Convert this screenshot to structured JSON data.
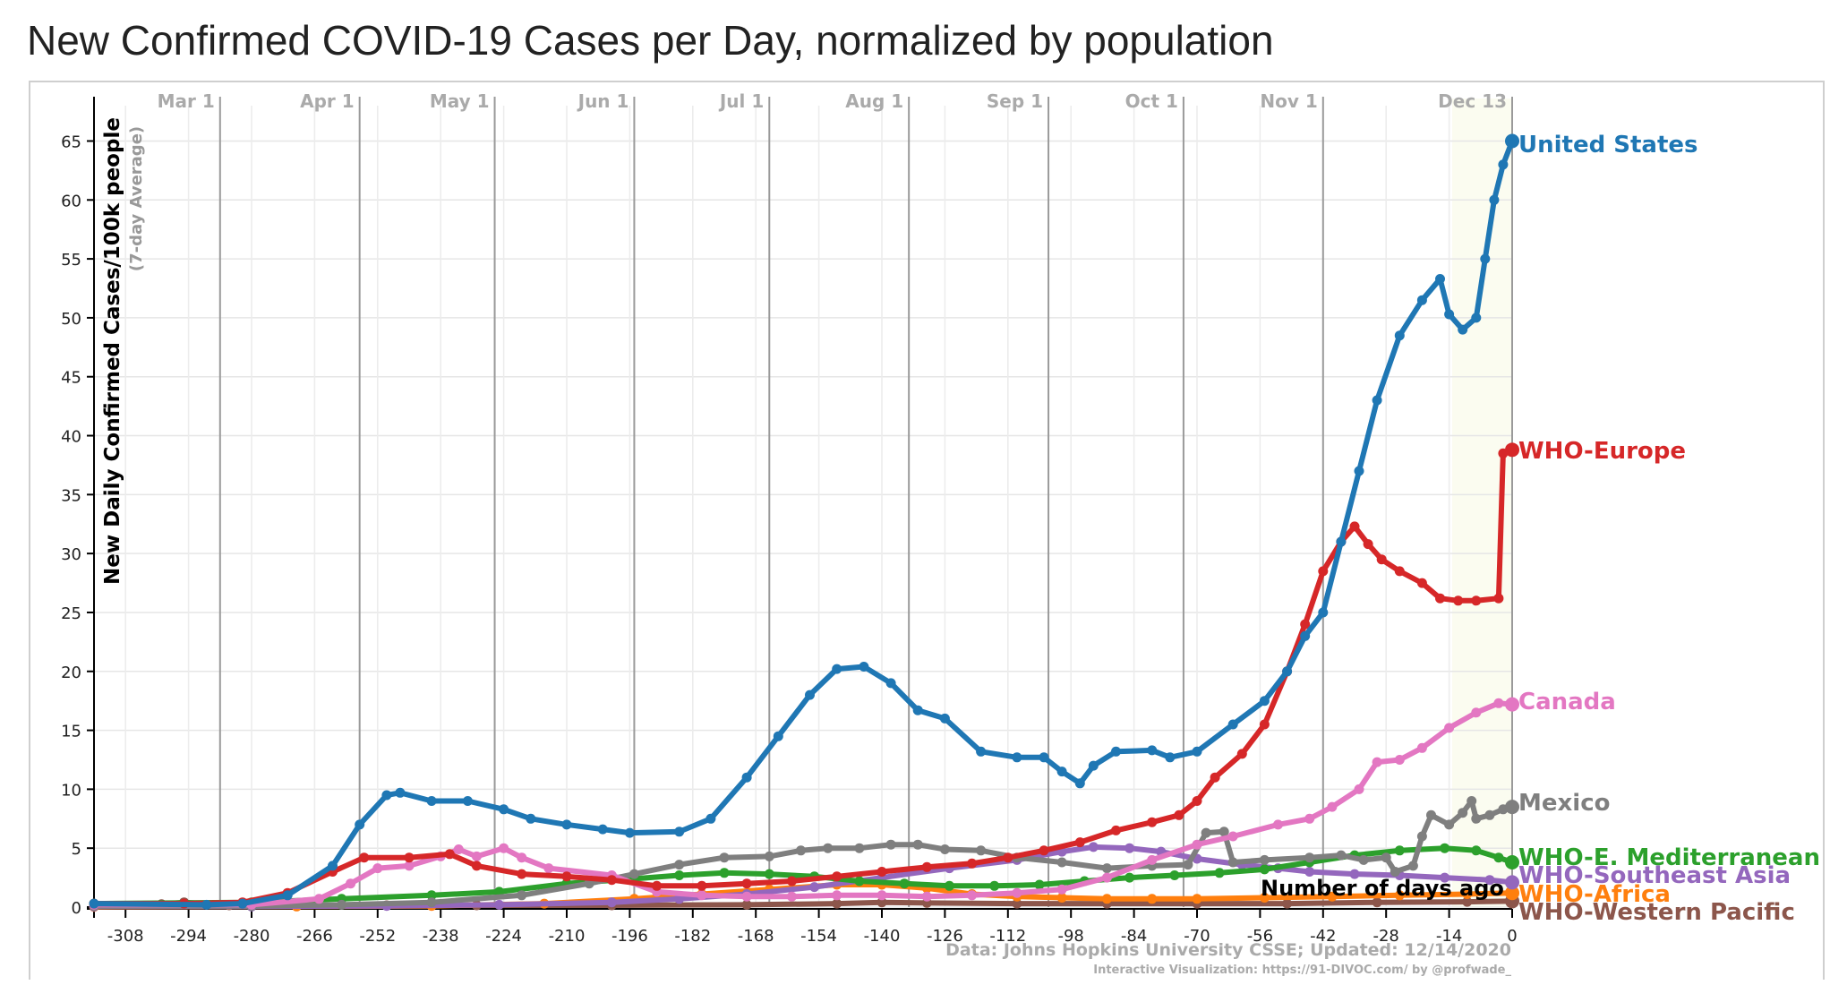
{
  "title": "New Confirmed COVID-19 Cases per Day, normalized by population",
  "chart_data": {
    "type": "line",
    "title": "New Confirmed COVID-19 Cases per Day, normalized by population",
    "ylabel": "New Daily Confirmed Cases/100k people",
    "ylabel_sub": "(7-day Average)",
    "xlabel": "Number of days ago",
    "xlim": [
      -315,
      0
    ],
    "ylim": [
      0,
      68
    ],
    "x_ticks": [
      -308,
      -294,
      -280,
      -266,
      -252,
      -238,
      -224,
      -210,
      -196,
      -182,
      -168,
      -154,
      -140,
      -126,
      -112,
      -98,
      -84,
      -70,
      -56,
      -42,
      -28,
      -14,
      0
    ],
    "y_ticks": [
      0,
      5,
      10,
      15,
      20,
      25,
      30,
      35,
      40,
      45,
      50,
      55,
      60,
      65
    ],
    "grid": true,
    "date_markers": [
      {
        "label": "Mar 1",
        "x": -287
      },
      {
        "label": "Apr 1",
        "x": -256
      },
      {
        "label": "May 1",
        "x": -226
      },
      {
        "label": "Jun 1",
        "x": -195
      },
      {
        "label": "Jul 1",
        "x": -165
      },
      {
        "label": "Aug 1",
        "x": -134
      },
      {
        "label": "Sep 1",
        "x": -103
      },
      {
        "label": "Oct 1",
        "x": -73
      },
      {
        "label": "Nov 1",
        "x": -42
      },
      {
        "label": "Dec 13",
        "x": 0
      }
    ],
    "series": [
      {
        "name": "United States",
        "color": "#1f77b4",
        "points": [
          [
            -315,
            0.3
          ],
          [
            -290,
            0.2
          ],
          [
            -282,
            0.3
          ],
          [
            -272,
            1
          ],
          [
            -262,
            3.5
          ],
          [
            -256,
            7
          ],
          [
            -250,
            9.5
          ],
          [
            -247,
            9.7
          ],
          [
            -240,
            9
          ],
          [
            -232,
            9
          ],
          [
            -224,
            8.3
          ],
          [
            -218,
            7.5
          ],
          [
            -210,
            7
          ],
          [
            -202,
            6.6
          ],
          [
            -196,
            6.3
          ],
          [
            -185,
            6.4
          ],
          [
            -178,
            7.5
          ],
          [
            -170,
            11
          ],
          [
            -163,
            14.5
          ],
          [
            -156,
            18
          ],
          [
            -150,
            20.2
          ],
          [
            -144,
            20.4
          ],
          [
            -138,
            19
          ],
          [
            -132,
            16.7
          ],
          [
            -126,
            16
          ],
          [
            -118,
            13.2
          ],
          [
            -110,
            12.7
          ],
          [
            -104,
            12.7
          ],
          [
            -100,
            11.5
          ],
          [
            -96,
            10.5
          ],
          [
            -93,
            12
          ],
          [
            -88,
            13.2
          ],
          [
            -80,
            13.3
          ],
          [
            -76,
            12.7
          ],
          [
            -70,
            13.2
          ],
          [
            -62,
            15.5
          ],
          [
            -55,
            17.5
          ],
          [
            -50,
            20
          ],
          [
            -46,
            23
          ],
          [
            -42,
            25
          ],
          [
            -38,
            31
          ],
          [
            -34,
            37
          ],
          [
            -30,
            43
          ],
          [
            -25,
            48.5
          ],
          [
            -20,
            51.5
          ],
          [
            -16,
            53.3
          ],
          [
            -14,
            50.3
          ],
          [
            -11,
            49
          ],
          [
            -8,
            50
          ],
          [
            -6,
            55
          ],
          [
            -4,
            60
          ],
          [
            -2,
            63
          ],
          [
            0,
            65
          ]
        ]
      },
      {
        "name": "WHO-Europe",
        "color": "#d62728",
        "points": [
          [
            -315,
            0.3
          ],
          [
            -295,
            0.3
          ],
          [
            -282,
            0.4
          ],
          [
            -272,
            1.2
          ],
          [
            -262,
            3
          ],
          [
            -255,
            4.2
          ],
          [
            -245,
            4.2
          ],
          [
            -236,
            4.5
          ],
          [
            -230,
            3.5
          ],
          [
            -220,
            2.8
          ],
          [
            -210,
            2.6
          ],
          [
            -200,
            2.3
          ],
          [
            -190,
            1.8
          ],
          [
            -180,
            1.8
          ],
          [
            -170,
            2
          ],
          [
            -160,
            2.2
          ],
          [
            -150,
            2.6
          ],
          [
            -140,
            3
          ],
          [
            -130,
            3.4
          ],
          [
            -120,
            3.7
          ],
          [
            -112,
            4.2
          ],
          [
            -104,
            4.8
          ],
          [
            -96,
            5.5
          ],
          [
            -88,
            6.5
          ],
          [
            -80,
            7.2
          ],
          [
            -74,
            7.8
          ],
          [
            -70,
            9
          ],
          [
            -66,
            11
          ],
          [
            -60,
            13
          ],
          [
            -55,
            15.5
          ],
          [
            -50,
            20
          ],
          [
            -46,
            24
          ],
          [
            -42,
            28.5
          ],
          [
            -38,
            31
          ],
          [
            -35,
            32.3
          ],
          [
            -32,
            30.8
          ],
          [
            -29,
            29.5
          ],
          [
            -25,
            28.5
          ],
          [
            -20,
            27.5
          ],
          [
            -16,
            26.2
          ],
          [
            -12,
            26
          ],
          [
            -8,
            26
          ],
          [
            -3,
            26.2
          ],
          [
            -2,
            38.5
          ],
          [
            0,
            38.8
          ]
        ]
      },
      {
        "name": "Canada",
        "color": "#e377c2",
        "points": [
          [
            -315,
            0.2
          ],
          [
            -280,
            0.2
          ],
          [
            -265,
            0.7
          ],
          [
            -258,
            2
          ],
          [
            -252,
            3.3
          ],
          [
            -245,
            3.5
          ],
          [
            -238,
            4.3
          ],
          [
            -234,
            4.9
          ],
          [
            -230,
            4.3
          ],
          [
            -224,
            5
          ],
          [
            -220,
            4.2
          ],
          [
            -214,
            3.3
          ],
          [
            -200,
            2.7
          ],
          [
            -190,
            1.3
          ],
          [
            -180,
            1
          ],
          [
            -170,
            0.9
          ],
          [
            -160,
            0.9
          ],
          [
            -150,
            1
          ],
          [
            -140,
            1
          ],
          [
            -130,
            0.9
          ],
          [
            -120,
            1
          ],
          [
            -110,
            1.2
          ],
          [
            -100,
            1.5
          ],
          [
            -90,
            2.5
          ],
          [
            -80,
            4
          ],
          [
            -70,
            5.3
          ],
          [
            -62,
            6
          ],
          [
            -52,
            7
          ],
          [
            -45,
            7.5
          ],
          [
            -40,
            8.5
          ],
          [
            -34,
            10
          ],
          [
            -30,
            12.3
          ],
          [
            -25,
            12.5
          ],
          [
            -20,
            13.5
          ],
          [
            -14,
            15.2
          ],
          [
            -8,
            16.5
          ],
          [
            -3,
            17.3
          ],
          [
            0,
            17.2
          ]
        ]
      },
      {
        "name": "Mexico",
        "color": "#7f7f7f",
        "points": [
          [
            -315,
            0.1
          ],
          [
            -280,
            0.1
          ],
          [
            -260,
            0.2
          ],
          [
            -240,
            0.4
          ],
          [
            -220,
            1
          ],
          [
            -205,
            2
          ],
          [
            -195,
            2.8
          ],
          [
            -185,
            3.6
          ],
          [
            -175,
            4.2
          ],
          [
            -165,
            4.3
          ],
          [
            -158,
            4.8
          ],
          [
            -152,
            5
          ],
          [
            -145,
            5
          ],
          [
            -138,
            5.3
          ],
          [
            -132,
            5.3
          ],
          [
            -126,
            4.9
          ],
          [
            -118,
            4.8
          ],
          [
            -110,
            4.2
          ],
          [
            -100,
            3.8
          ],
          [
            -90,
            3.3
          ],
          [
            -80,
            3.5
          ],
          [
            -72,
            3.6
          ],
          [
            -68,
            6.3
          ],
          [
            -64,
            6.4
          ],
          [
            -62,
            3.8
          ],
          [
            -55,
            4
          ],
          [
            -45,
            4.2
          ],
          [
            -38,
            4.4
          ],
          [
            -33,
            4
          ],
          [
            -28,
            4.2
          ],
          [
            -26,
            3
          ],
          [
            -22,
            3.5
          ],
          [
            -20,
            6
          ],
          [
            -18,
            7.8
          ],
          [
            -14,
            7
          ],
          [
            -11,
            8
          ],
          [
            -9,
            9
          ],
          [
            -8,
            7.5
          ],
          [
            -5,
            7.8
          ],
          [
            -2,
            8.3
          ],
          [
            0,
            8.5
          ]
        ]
      },
      {
        "name": "WHO-E. Mediterranean",
        "color": "#2ca02c",
        "points": [
          [
            -315,
            0.3
          ],
          [
            -280,
            0.4
          ],
          [
            -260,
            0.7
          ],
          [
            -240,
            1
          ],
          [
            -225,
            1.3
          ],
          [
            -210,
            2
          ],
          [
            -195,
            2.4
          ],
          [
            -185,
            2.7
          ],
          [
            -175,
            2.9
          ],
          [
            -165,
            2.8
          ],
          [
            -155,
            2.6
          ],
          [
            -145,
            2.2
          ],
          [
            -135,
            2
          ],
          [
            -125,
            1.8
          ],
          [
            -115,
            1.8
          ],
          [
            -105,
            1.9
          ],
          [
            -95,
            2.2
          ],
          [
            -85,
            2.5
          ],
          [
            -75,
            2.7
          ],
          [
            -65,
            2.9
          ],
          [
            -55,
            3.2
          ],
          [
            -45,
            3.8
          ],
          [
            -35,
            4.4
          ],
          [
            -25,
            4.8
          ],
          [
            -15,
            5
          ],
          [
            -8,
            4.8
          ],
          [
            -3,
            4.2
          ],
          [
            0,
            3.8
          ]
        ]
      },
      {
        "name": "WHO-Southeast Asia",
        "color": "#9467bd",
        "points": [
          [
            -315,
            0.05
          ],
          [
            -280,
            0.05
          ],
          [
            -250,
            0.1
          ],
          [
            -225,
            0.2
          ],
          [
            -200,
            0.4
          ],
          [
            -185,
            0.7
          ],
          [
            -170,
            1.1
          ],
          [
            -155,
            1.7
          ],
          [
            -140,
            2.5
          ],
          [
            -125,
            3.3
          ],
          [
            -110,
            4
          ],
          [
            -100,
            4.7
          ],
          [
            -93,
            5.1
          ],
          [
            -85,
            5
          ],
          [
            -78,
            4.7
          ],
          [
            -70,
            4.1
          ],
          [
            -60,
            3.6
          ],
          [
            -52,
            3.3
          ],
          [
            -45,
            3
          ],
          [
            -35,
            2.8
          ],
          [
            -25,
            2.7
          ],
          [
            -15,
            2.5
          ],
          [
            -5,
            2.3
          ],
          [
            0,
            2.1
          ]
        ]
      },
      {
        "name": "WHO-Africa",
        "color": "#ff7f0e",
        "points": [
          [
            -315,
            0.02
          ],
          [
            -270,
            0.05
          ],
          [
            -240,
            0.1
          ],
          [
            -215,
            0.3
          ],
          [
            -195,
            0.7
          ],
          [
            -180,
            1.1
          ],
          [
            -165,
            1.5
          ],
          [
            -150,
            1.9
          ],
          [
            -140,
            1.9
          ],
          [
            -130,
            1.6
          ],
          [
            -120,
            1.1
          ],
          [
            -110,
            0.9
          ],
          [
            -100,
            0.8
          ],
          [
            -90,
            0.7
          ],
          [
            -80,
            0.7
          ],
          [
            -70,
            0.7
          ],
          [
            -55,
            0.8
          ],
          [
            -40,
            0.9
          ],
          [
            -25,
            1
          ],
          [
            -10,
            1.1
          ],
          [
            0,
            1.2
          ]
        ]
      },
      {
        "name": "WHO-Western Pacific",
        "color": "#8c564b",
        "points": [
          [
            -315,
            0.25
          ],
          [
            -300,
            0.25
          ],
          [
            -295,
            0.4
          ],
          [
            -285,
            0.15
          ],
          [
            -270,
            0.1
          ],
          [
            -250,
            0.15
          ],
          [
            -230,
            0.15
          ],
          [
            -200,
            0.15
          ],
          [
            -170,
            0.2
          ],
          [
            -150,
            0.3
          ],
          [
            -140,
            0.4
          ],
          [
            -130,
            0.35
          ],
          [
            -110,
            0.3
          ],
          [
            -90,
            0.3
          ],
          [
            -70,
            0.3
          ],
          [
            -50,
            0.3
          ],
          [
            -30,
            0.4
          ],
          [
            -10,
            0.45
          ],
          [
            0,
            0.5
          ]
        ]
      }
    ],
    "annotations": {
      "source": "Data: Johns Hopkins University CSSE; Updated: 12/14/2020",
      "credit": "Interactive Visualization: https://91-DIVOC.com/ by @profwade_"
    }
  }
}
